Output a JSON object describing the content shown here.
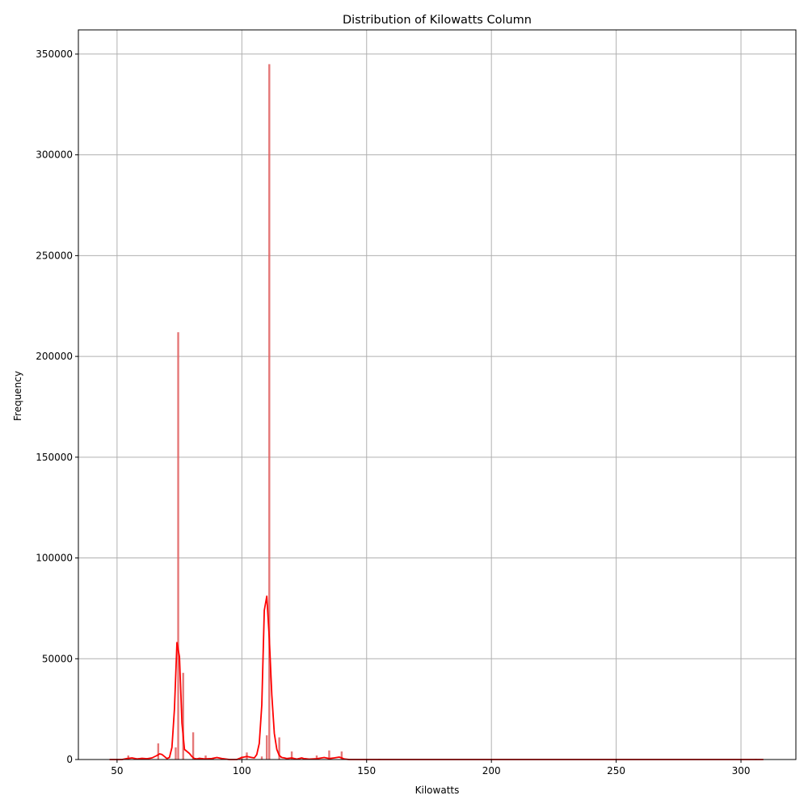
{
  "chart_data": {
    "type": "bar",
    "title": "Distribution of Kilowatts Column",
    "xlabel": "Kilowatts",
    "ylabel": "Frequency",
    "xlim": [
      34.5,
      322
    ],
    "ylim": [
      0,
      362000
    ],
    "xticks": [
      50,
      100,
      150,
      200,
      250,
      300
    ],
    "yticks": [
      0,
      50000,
      100000,
      150000,
      200000,
      250000,
      300000,
      350000
    ],
    "grid": true,
    "bar_color": "#e06060",
    "kde_color": "#ff0000",
    "bars": [
      {
        "x": 54.5,
        "value": 2000
      },
      {
        "x": 61.0,
        "value": 700
      },
      {
        "x": 66.5,
        "value": 8000
      },
      {
        "x": 73.5,
        "value": 6000
      },
      {
        "x": 74.5,
        "value": 212000
      },
      {
        "x": 76.5,
        "value": 43000
      },
      {
        "x": 80.5,
        "value": 13500
      },
      {
        "x": 85.5,
        "value": 2000
      },
      {
        "x": 88.5,
        "value": 800
      },
      {
        "x": 100.0,
        "value": 1500
      },
      {
        "x": 102.0,
        "value": 3500
      },
      {
        "x": 108.0,
        "value": 1500
      },
      {
        "x": 110.0,
        "value": 12000
      },
      {
        "x": 111.0,
        "value": 345000
      },
      {
        "x": 115.0,
        "value": 11000
      },
      {
        "x": 120.0,
        "value": 4000
      },
      {
        "x": 125.5,
        "value": 800
      },
      {
        "x": 130.0,
        "value": 2000
      },
      {
        "x": 135.0,
        "value": 4500
      },
      {
        "x": 140.0,
        "value": 4000
      },
      {
        "x": 155.0,
        "value": 300
      },
      {
        "x": 306.0,
        "value": 300
      }
    ],
    "kde": {
      "x": [
        47,
        52,
        54,
        56,
        58,
        60,
        62,
        64,
        66,
        67,
        68,
        69,
        70,
        71,
        72,
        73,
        74,
        75,
        76,
        77,
        78,
        79,
        80,
        81,
        82,
        83,
        85,
        88,
        90,
        92,
        95,
        98,
        100,
        102,
        104,
        105,
        106,
        107,
        108,
        109,
        110,
        111,
        112,
        113,
        114,
        115,
        116,
        117,
        118,
        120,
        122,
        124,
        125,
        127,
        130,
        133,
        135,
        137,
        139,
        140,
        141,
        143,
        147,
        150,
        160,
        200,
        250,
        309
      ],
      "y": [
        0,
        0,
        500,
        800,
        300,
        600,
        400,
        800,
        2000,
        2800,
        2500,
        1500,
        500,
        1000,
        6000,
        25000,
        58000,
        51000,
        18000,
        5000,
        4000,
        3000,
        1500,
        500,
        300,
        600,
        300,
        500,
        1000,
        500,
        0,
        0,
        1000,
        1500,
        1000,
        800,
        2500,
        8000,
        27000,
        74000,
        81000,
        60000,
        32000,
        13000,
        5000,
        2000,
        1000,
        800,
        500,
        800,
        200,
        800,
        400,
        200,
        400,
        1000,
        500,
        800,
        1200,
        800,
        300,
        0,
        0,
        0,
        0,
        0,
        0,
        0
      ]
    }
  }
}
